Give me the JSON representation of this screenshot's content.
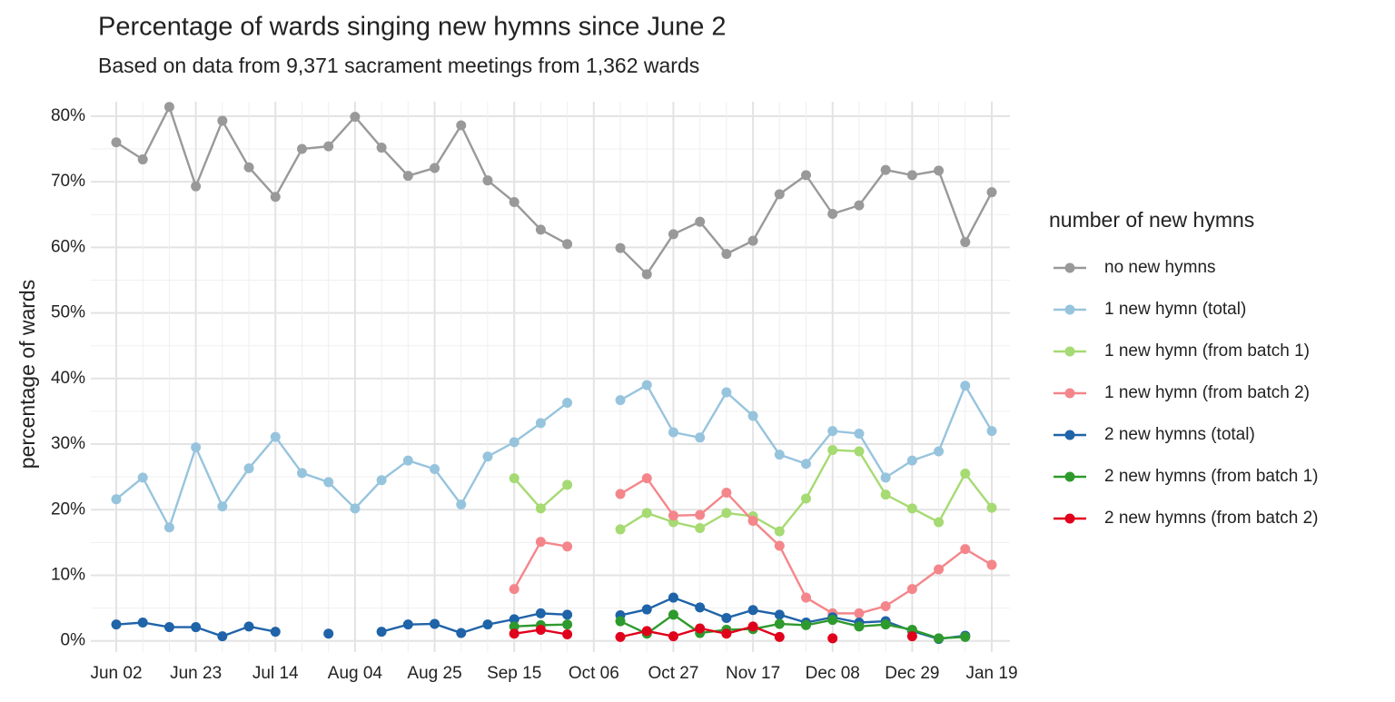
{
  "chart_data": {
    "type": "line",
    "title": "Percentage of wards singing new hymns since June 2",
    "subtitle": "Based on data from 9,371 sacrament meetings from 1,362 wards",
    "y_label": "percentage of wards",
    "legend_title": "number of new hymns",
    "legend_position": "right",
    "grid": true,
    "categories": [
      "Jun 02",
      null,
      null,
      "Jun 23",
      null,
      null,
      "Jul 14",
      null,
      null,
      "Aug 04",
      null,
      null,
      "Aug 25",
      null,
      null,
      "Sep 15",
      null,
      null,
      "Oct 06",
      null,
      null,
      "Oct 27",
      null,
      null,
      "Nov 17",
      null,
      null,
      "Dec 08",
      null,
      null,
      "Dec 29",
      null,
      null,
      "Jan 19"
    ],
    "ylim": [
      -1.7,
      82.2
    ],
    "yticks": [
      {
        "value": 0,
        "label": "0%"
      },
      {
        "value": 10,
        "label": "10%"
      },
      {
        "value": 20,
        "label": "20%"
      },
      {
        "value": 30,
        "label": "30%"
      },
      {
        "value": 40,
        "label": "40%"
      },
      {
        "value": 50,
        "label": "50%"
      },
      {
        "value": 60,
        "label": "60%"
      },
      {
        "value": 70,
        "label": "70%"
      },
      {
        "value": 80,
        "label": "80%"
      }
    ],
    "series": [
      {
        "name": "no new hymns",
        "color": "#999999",
        "values": [
          76.0,
          73.4,
          81.4,
          69.3,
          79.3,
          72.2,
          67.7,
          75.0,
          75.4,
          79.9,
          75.2,
          70.9,
          72.1,
          78.6,
          70.2,
          66.9,
          62.7,
          60.5,
          null,
          59.9,
          55.9,
          62.0,
          63.9,
          59.0,
          61.0,
          68.1,
          71.0,
          65.1,
          66.4,
          71.8,
          71.0,
          71.7,
          60.8,
          68.4
        ]
      },
      {
        "name": "1 new hymn (total)",
        "color": "#97c4dd",
        "values": [
          21.6,
          24.9,
          17.3,
          29.5,
          20.5,
          26.3,
          31.1,
          25.6,
          24.2,
          20.2,
          24.5,
          27.5,
          26.2,
          20.8,
          28.1,
          30.3,
          33.2,
          36.3,
          null,
          36.7,
          39.0,
          31.8,
          31.0,
          37.9,
          34.3,
          28.4,
          27.0,
          32.0,
          31.6,
          24.9,
          27.5,
          28.9,
          38.9,
          32.0
        ]
      },
      {
        "name": "1 new hymn (from batch 1)",
        "color": "#a6da73",
        "values": [
          null,
          null,
          null,
          null,
          null,
          null,
          null,
          null,
          null,
          null,
          null,
          null,
          null,
          null,
          null,
          24.8,
          20.2,
          23.8,
          null,
          17.0,
          19.5,
          18.1,
          17.2,
          19.5,
          19.0,
          16.7,
          21.7,
          29.1,
          28.9,
          22.3,
          20.2,
          18.1,
          25.5,
          20.3
        ]
      },
      {
        "name": "1 new hymn (from batch 2)",
        "color": "#f4868b",
        "values": [
          null,
          null,
          null,
          null,
          null,
          null,
          null,
          null,
          null,
          null,
          null,
          null,
          null,
          null,
          null,
          7.9,
          15.1,
          14.4,
          null,
          22.4,
          24.8,
          19.1,
          19.2,
          22.6,
          18.3,
          14.5,
          6.6,
          4.2,
          4.2,
          5.3,
          7.9,
          10.9,
          14.0,
          11.6
        ]
      },
      {
        "name": "2 new hymns (total)",
        "color": "#1f63a8",
        "values": [
          2.5,
          2.8,
          2.1,
          2.1,
          0.7,
          2.2,
          1.4,
          null,
          1.1,
          null,
          1.4,
          2.5,
          2.6,
          1.2,
          2.5,
          3.3,
          4.2,
          4.0,
          null,
          3.9,
          4.8,
          6.6,
          5.1,
          3.5,
          4.7,
          4.0,
          2.8,
          3.6,
          2.8,
          3.0,
          1.5,
          0.3,
          0.8,
          null
        ]
      },
      {
        "name": "2 new hymns (from batch 1)",
        "color": "#2e9a2e",
        "values": [
          null,
          null,
          null,
          null,
          null,
          null,
          null,
          null,
          null,
          null,
          null,
          null,
          null,
          null,
          null,
          2.2,
          2.4,
          2.5,
          null,
          3.0,
          1.1,
          4.0,
          1.2,
          1.7,
          1.8,
          2.6,
          2.4,
          3.2,
          2.2,
          2.5,
          1.7,
          0.4,
          0.6,
          null
        ]
      },
      {
        "name": "2 new hymns (from batch 2)",
        "color": "#e0001b",
        "values": [
          null,
          null,
          null,
          null,
          null,
          null,
          null,
          null,
          null,
          null,
          null,
          null,
          null,
          null,
          null,
          1.1,
          1.7,
          1.0,
          null,
          0.6,
          1.5,
          0.7,
          1.9,
          1.1,
          2.2,
          0.6,
          null,
          0.4,
          null,
          null,
          0.7,
          null,
          null,
          null
        ]
      }
    ]
  }
}
